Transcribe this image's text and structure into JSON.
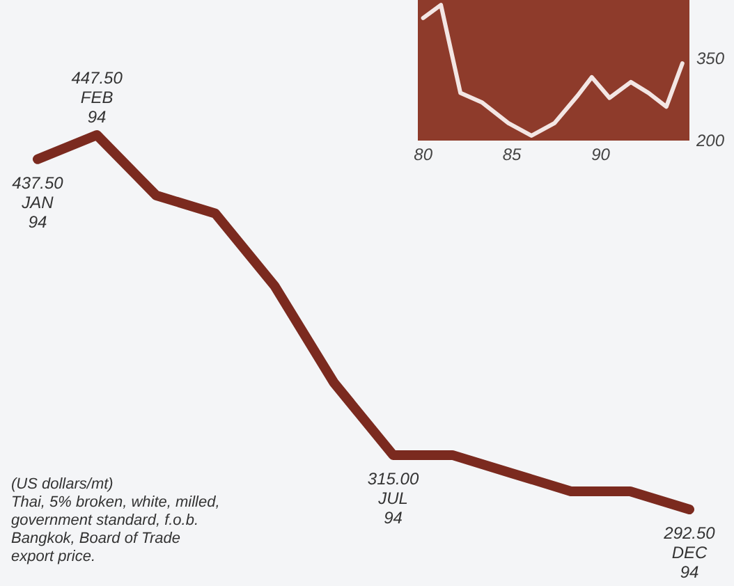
{
  "chart_data": [
    {
      "type": "line",
      "categories": [
        null,
        null,
        null,
        null,
        null,
        null,
        null,
        null,
        null,
        null,
        null,
        null
      ],
      "series": [
        {
          "color": "#7b2a1f",
          "values": [
            437.5,
            447.5,
            422.5,
            415,
            385,
            345,
            315,
            315,
            307.5,
            300,
            300,
            292.5
          ],
          "value_labels": [
            "437.50\nJAN\n94",
            "447.50\nFEB\n94",
            null,
            null,
            null,
            null,
            "315.00\nJUL\n94",
            null,
            null,
            null,
            null,
            "292.50\nDEC\n94"
          ]
        }
      ],
      "annotations": [
        "(US dollars/mt)\nThai, 5% broken, white, milled,\ngovernment standard, f.o.b.\nBangkok, Board of Trade\nexport price."
      ],
      "line_style": "solid"
    },
    {
      "type": "line",
      "x": [
        80,
        81,
        82.1,
        83.3,
        84.8,
        86.1,
        87.4,
        88.7,
        89.5,
        90.5,
        91.7,
        92.7,
        93.7,
        94.6
      ],
      "series": [
        {
          "color": "#f3e6e4",
          "values": [
            424,
            448,
            287,
            270,
            232,
            209,
            232,
            282,
            316,
            278,
            307,
            287,
            262,
            341
          ]
        }
      ],
      "xlim": [
        79.7,
        95
      ],
      "ylim": [
        200,
        457
      ],
      "xticks": [
        80,
        85,
        90
      ],
      "yticks": [
        200,
        350
      ],
      "line_style": "solid"
    }
  ]
}
